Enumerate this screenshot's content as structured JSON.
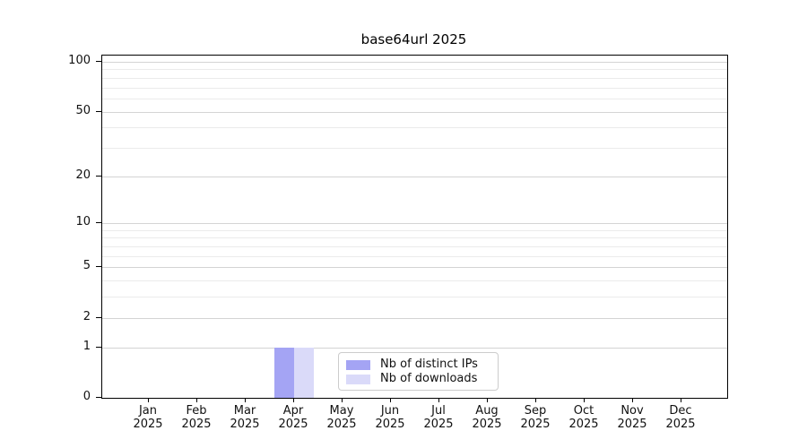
{
  "chart_data": {
    "type": "bar",
    "title": "base64url 2025",
    "categories": [
      "Jan",
      "Feb",
      "Mar",
      "Apr",
      "May",
      "Jun",
      "Jul",
      "Aug",
      "Sep",
      "Oct",
      "Nov",
      "Dec"
    ],
    "category_year": "2025",
    "series": [
      {
        "name": "Nb of distinct IPs",
        "color": "#a4a4f4",
        "values": [
          0,
          0,
          0,
          1,
          0,
          0,
          0,
          0,
          0,
          0,
          0,
          0
        ]
      },
      {
        "name": "Nb of downloads",
        "color": "#dadaf9",
        "values": [
          0,
          0,
          0,
          1,
          0,
          0,
          0,
          0,
          0,
          0,
          0,
          0
        ]
      }
    ],
    "xlabel": "",
    "ylabel": "",
    "y_scale": "log1p",
    "ylim": [
      0,
      109
    ],
    "y_ticks": [
      0,
      1,
      2,
      5,
      10,
      20,
      50,
      100
    ],
    "y_tick_labels": [
      "0",
      "1",
      "2",
      "5",
      "10",
      "20",
      "50",
      "100"
    ],
    "y_minor_ticks": [
      3,
      4,
      6,
      7,
      8,
      9,
      30,
      40,
      60,
      70,
      80,
      90
    ],
    "grid": "both",
    "legend_position": "lower center",
    "spine_color": "#000000",
    "grid_major_color": "#d4d4d4",
    "grid_minor_color": "#ebebeb"
  }
}
